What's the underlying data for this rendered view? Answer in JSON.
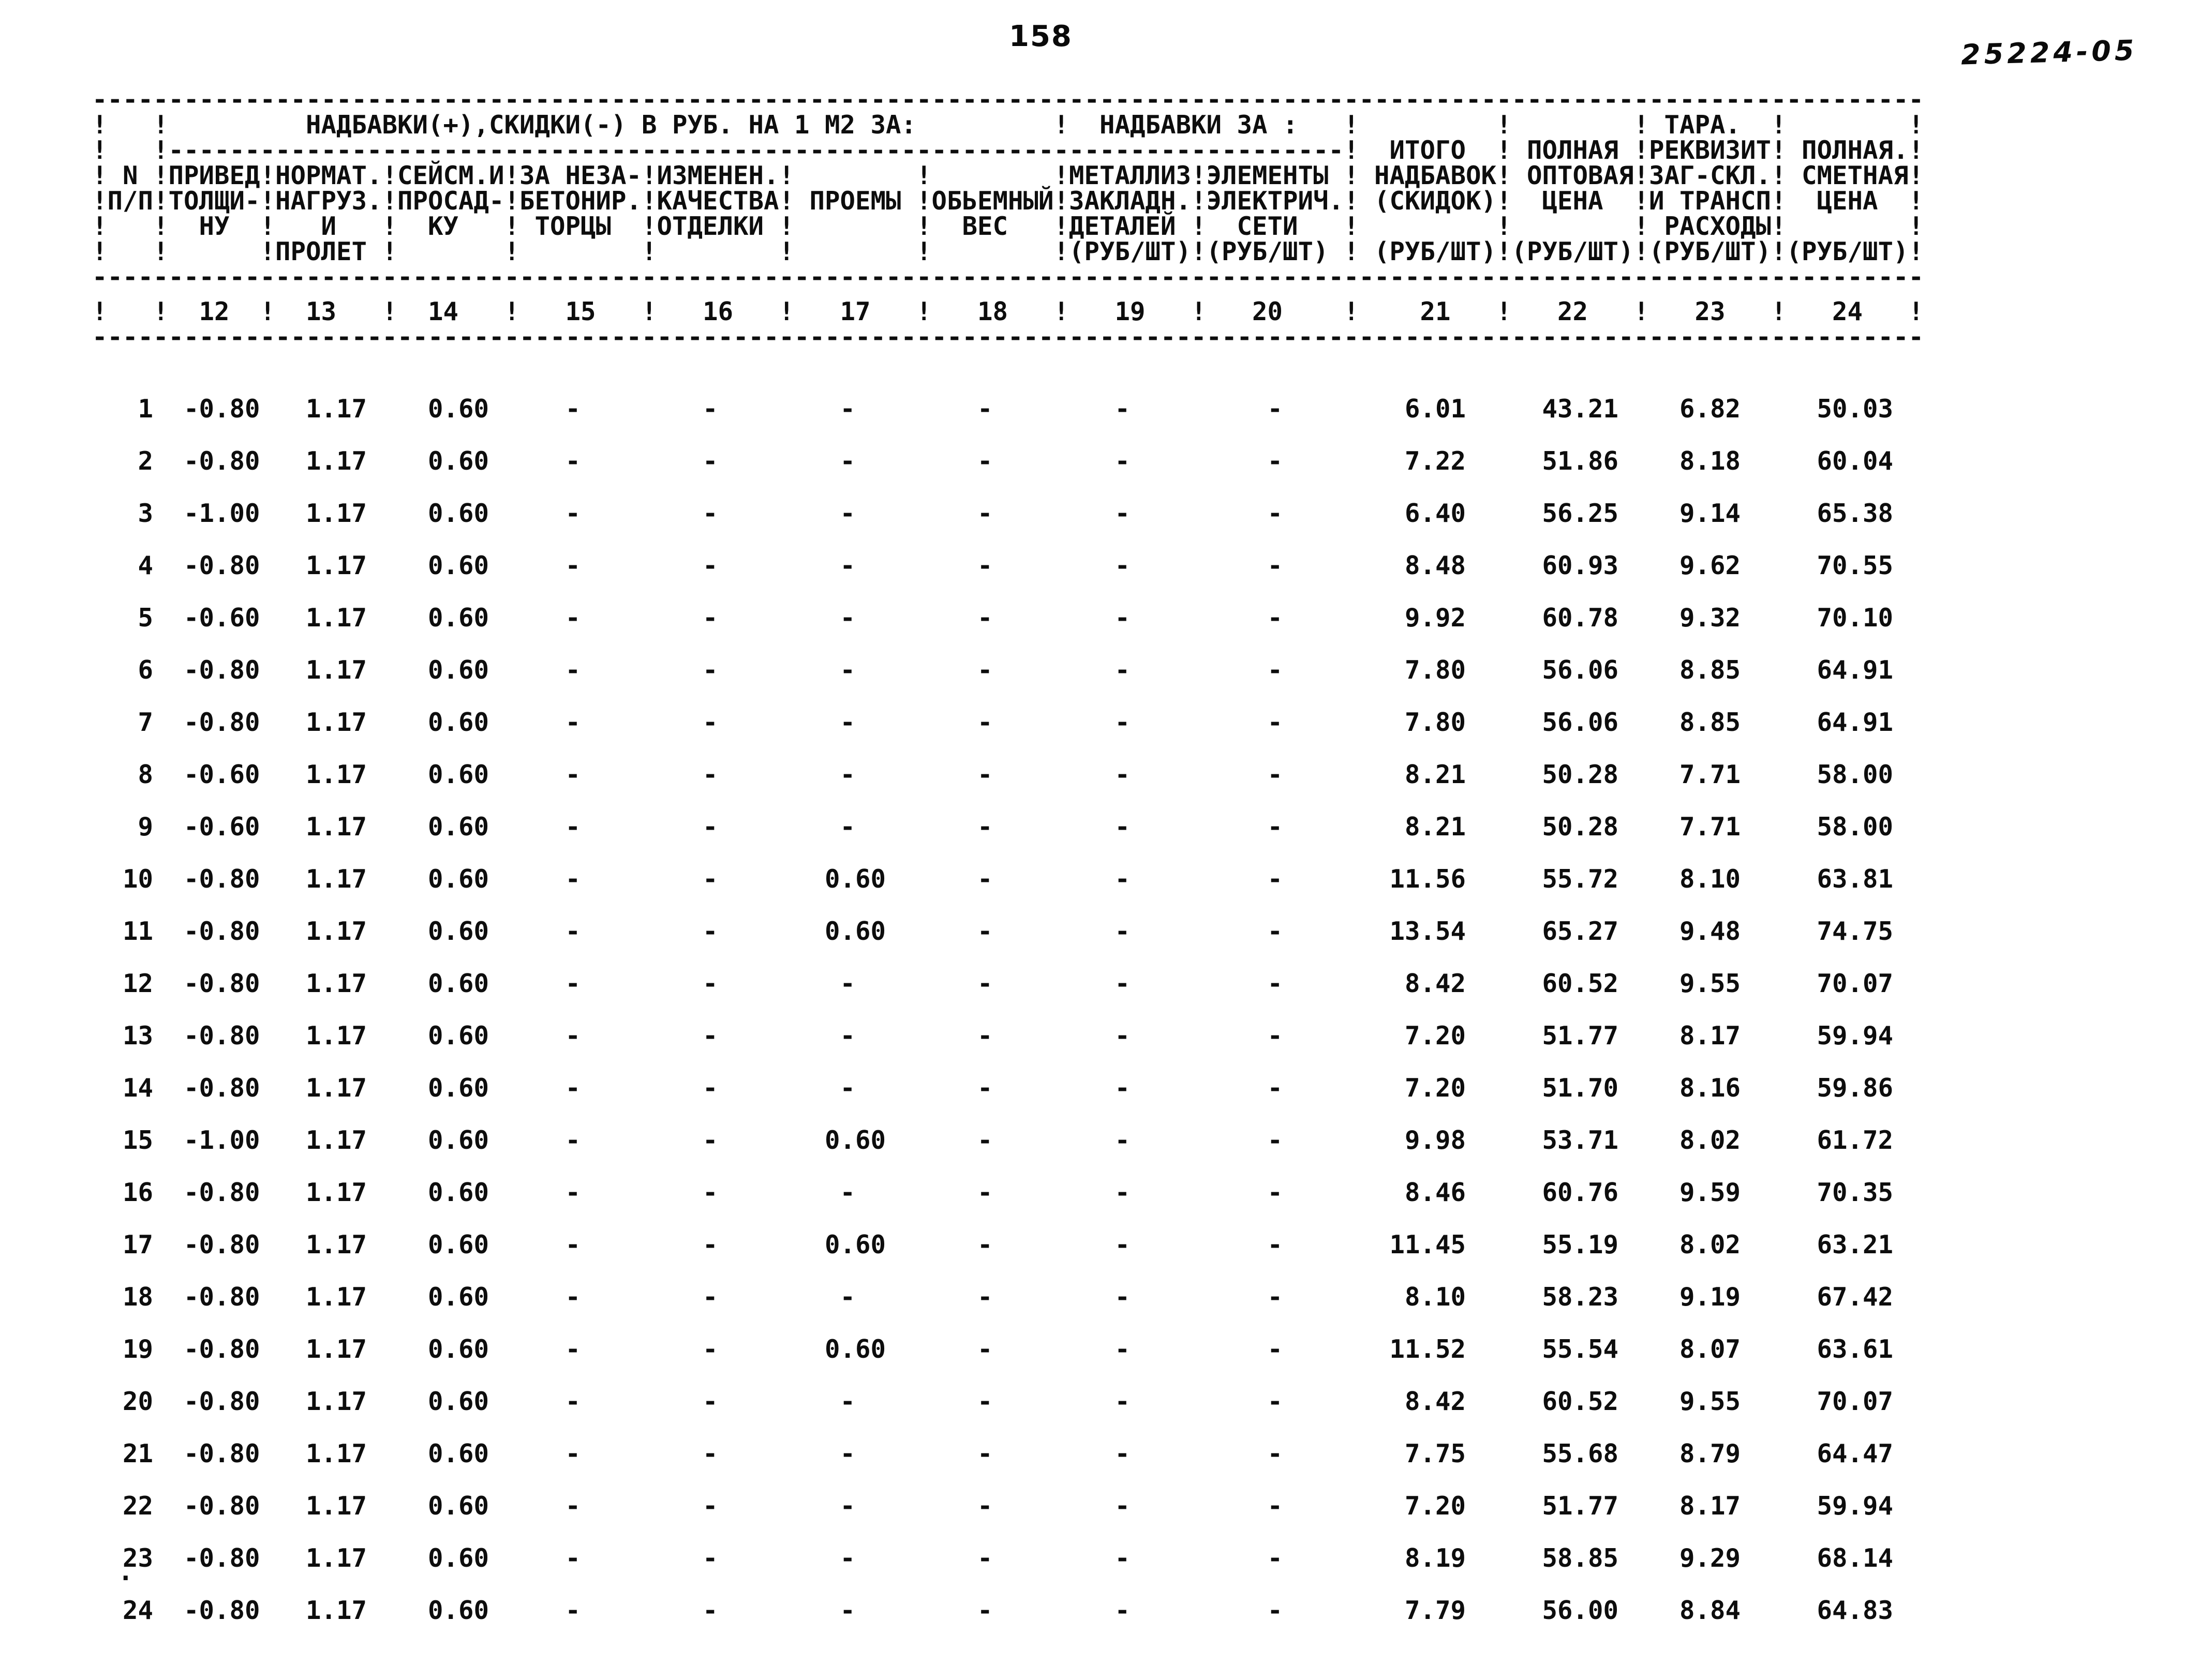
{
  "page": {
    "number": "158",
    "code": "25224-05",
    "stray_mark": "."
  },
  "table": {
    "rule": "------------------------------------------------------------------------------------------------------------------------",
    "header_lines": [
      "------------------------------------------------------------------------------------------------------------------------",
      "!   !         НАДБАВКИ(+),СКИДКИ(-) В РУБ. НА 1 М2 ЗА:         !  НАДБАВКИ ЗА :   !         !        ! ТАРА.  !        !",
      "!   !-----------------------------------------------------------------------------!  ИТОГО  ! ПОЛНАЯ !РЕКВИЗИТ! ПОЛНАЯ.!",
      "! N !ПРИВЕД!НОРМАТ.!СЕЙСМ.И!ЗА НЕЗА-!ИЗМЕНЕН.!        !        !МЕТАЛЛИЗ!ЭЛЕМЕНТЫ ! НАДБАВОК! ОПТОВАЯ!ЗАГ-СКЛ.! СМЕТНАЯ!",
      "!П/П!ТОЛЩИ-!НАГРУЗ.!ПРОСАД-!БЕТОНИР.!КАЧЕСТВА! ПРОЕМЫ !ОБЬЕМНЫЙ!ЗАКЛАДН.!ЭЛЕКТРИЧ.! (СКИДОК)!  ЦЕНА  !И ТРАНСП!  ЦЕНА  !",
      "!   !  НУ  !   И   !  КУ   ! ТОРЦЫ  !ОТДЕЛКИ !        !  ВЕС   !ДЕТАЛЕЙ !  СЕТИ   !         !        ! РАСХОДЫ!        !",
      "!   !      !ПРОЛЕТ !       !        !        !        !        !(РУБ/ШТ)!(РУБ/ШТ) ! (РУБ/ШТ)!(РУБ/ШТ)!(РУБ/ШТ)!(РУБ/ШТ)!",
      "------------------------------------------------------------------------------------------------------------------------"
    ],
    "colnum_line": "!   !  12  !  13   !  14   !   15   !   16   !   17   !   18   !   19   !   20    !    21   !   22   !   23   !   24   !",
    "column_numbers": [
      "12",
      "13",
      "14",
      "15",
      "16",
      "17",
      "18",
      "19",
      "20",
      "21",
      "22",
      "23",
      "24"
    ],
    "rows": [
      [
        "1",
        "-0.80",
        "1.17",
        "0.60",
        "-",
        "-",
        "-",
        "-",
        "-",
        "-",
        "6.01",
        "43.21",
        "6.82",
        "50.03"
      ],
      [
        "2",
        "-0.80",
        "1.17",
        "0.60",
        "-",
        "-",
        "-",
        "-",
        "-",
        "-",
        "7.22",
        "51.86",
        "8.18",
        "60.04"
      ],
      [
        "3",
        "-1.00",
        "1.17",
        "0.60",
        "-",
        "-",
        "-",
        "-",
        "-",
        "-",
        "6.40",
        "56.25",
        "9.14",
        "65.38"
      ],
      [
        "4",
        "-0.80",
        "1.17",
        "0.60",
        "-",
        "-",
        "-",
        "-",
        "-",
        "-",
        "8.48",
        "60.93",
        "9.62",
        "70.55"
      ],
      [
        "5",
        "-0.60",
        "1.17",
        "0.60",
        "-",
        "-",
        "-",
        "-",
        "-",
        "-",
        "9.92",
        "60.78",
        "9.32",
        "70.10"
      ],
      [
        "6",
        "-0.80",
        "1.17",
        "0.60",
        "-",
        "-",
        "-",
        "-",
        "-",
        "-",
        "7.80",
        "56.06",
        "8.85",
        "64.91"
      ],
      [
        "7",
        "-0.80",
        "1.17",
        "0.60",
        "-",
        "-",
        "-",
        "-",
        "-",
        "-",
        "7.80",
        "56.06",
        "8.85",
        "64.91"
      ],
      [
        "8",
        "-0.60",
        "1.17",
        "0.60",
        "-",
        "-",
        "-",
        "-",
        "-",
        "-",
        "8.21",
        "50.28",
        "7.71",
        "58.00"
      ],
      [
        "9",
        "-0.60",
        "1.17",
        "0.60",
        "-",
        "-",
        "-",
        "-",
        "-",
        "-",
        "8.21",
        "50.28",
        "7.71",
        "58.00"
      ],
      [
        "10",
        "-0.80",
        "1.17",
        "0.60",
        "-",
        "-",
        "0.60",
        "-",
        "-",
        "-",
        "11.56",
        "55.72",
        "8.10",
        "63.81"
      ],
      [
        "11",
        "-0.80",
        "1.17",
        "0.60",
        "-",
        "-",
        "0.60",
        "-",
        "-",
        "-",
        "13.54",
        "65.27",
        "9.48",
        "74.75"
      ],
      [
        "12",
        "-0.80",
        "1.17",
        "0.60",
        "-",
        "-",
        "-",
        "-",
        "-",
        "-",
        "8.42",
        "60.52",
        "9.55",
        "70.07"
      ],
      [
        "13",
        "-0.80",
        "1.17",
        "0.60",
        "-",
        "-",
        "-",
        "-",
        "-",
        "-",
        "7.20",
        "51.77",
        "8.17",
        "59.94"
      ],
      [
        "14",
        "-0.80",
        "1.17",
        "0.60",
        "-",
        "-",
        "-",
        "-",
        "-",
        "-",
        "7.20",
        "51.70",
        "8.16",
        "59.86"
      ],
      [
        "15",
        "-1.00",
        "1.17",
        "0.60",
        "-",
        "-",
        "0.60",
        "-",
        "-",
        "-",
        "9.98",
        "53.71",
        "8.02",
        "61.72"
      ],
      [
        "16",
        "-0.80",
        "1.17",
        "0.60",
        "-",
        "-",
        "-",
        "-",
        "-",
        "-",
        "8.46",
        "60.76",
        "9.59",
        "70.35"
      ],
      [
        "17",
        "-0.80",
        "1.17",
        "0.60",
        "-",
        "-",
        "0.60",
        "-",
        "-",
        "-",
        "11.45",
        "55.19",
        "8.02",
        "63.21"
      ],
      [
        "18",
        "-0.80",
        "1.17",
        "0.60",
        "-",
        "-",
        "-",
        "-",
        "-",
        "-",
        "8.10",
        "58.23",
        "9.19",
        "67.42"
      ],
      [
        "19",
        "-0.80",
        "1.17",
        "0.60",
        "-",
        "-",
        "0.60",
        "-",
        "-",
        "-",
        "11.52",
        "55.54",
        "8.07",
        "63.61"
      ],
      [
        "20",
        "-0.80",
        "1.17",
        "0.60",
        "-",
        "-",
        "-",
        "-",
        "-",
        "-",
        "8.42",
        "60.52",
        "9.55",
        "70.07"
      ],
      [
        "21",
        "-0.80",
        "1.17",
        "0.60",
        "-",
        "-",
        "-",
        "-",
        "-",
        "-",
        "7.75",
        "55.68",
        "8.79",
        "64.47"
      ],
      [
        "22",
        "-0.80",
        "1.17",
        "0.60",
        "-",
        "-",
        "-",
        "-",
        "-",
        "-",
        "7.20",
        "51.77",
        "8.17",
        "59.94"
      ],
      [
        "23",
        "-0.80",
        "1.17",
        "0.60",
        "-",
        "-",
        "-",
        "-",
        "-",
        "-",
        "8.19",
        "58.85",
        "9.29",
        "68.14"
      ],
      [
        "24",
        "-0.80",
        "1.17",
        "0.60",
        "-",
        "-",
        "-",
        "-",
        "-",
        "-",
        "7.79",
        "56.00",
        "8.84",
        "64.83"
      ]
    ]
  }
}
